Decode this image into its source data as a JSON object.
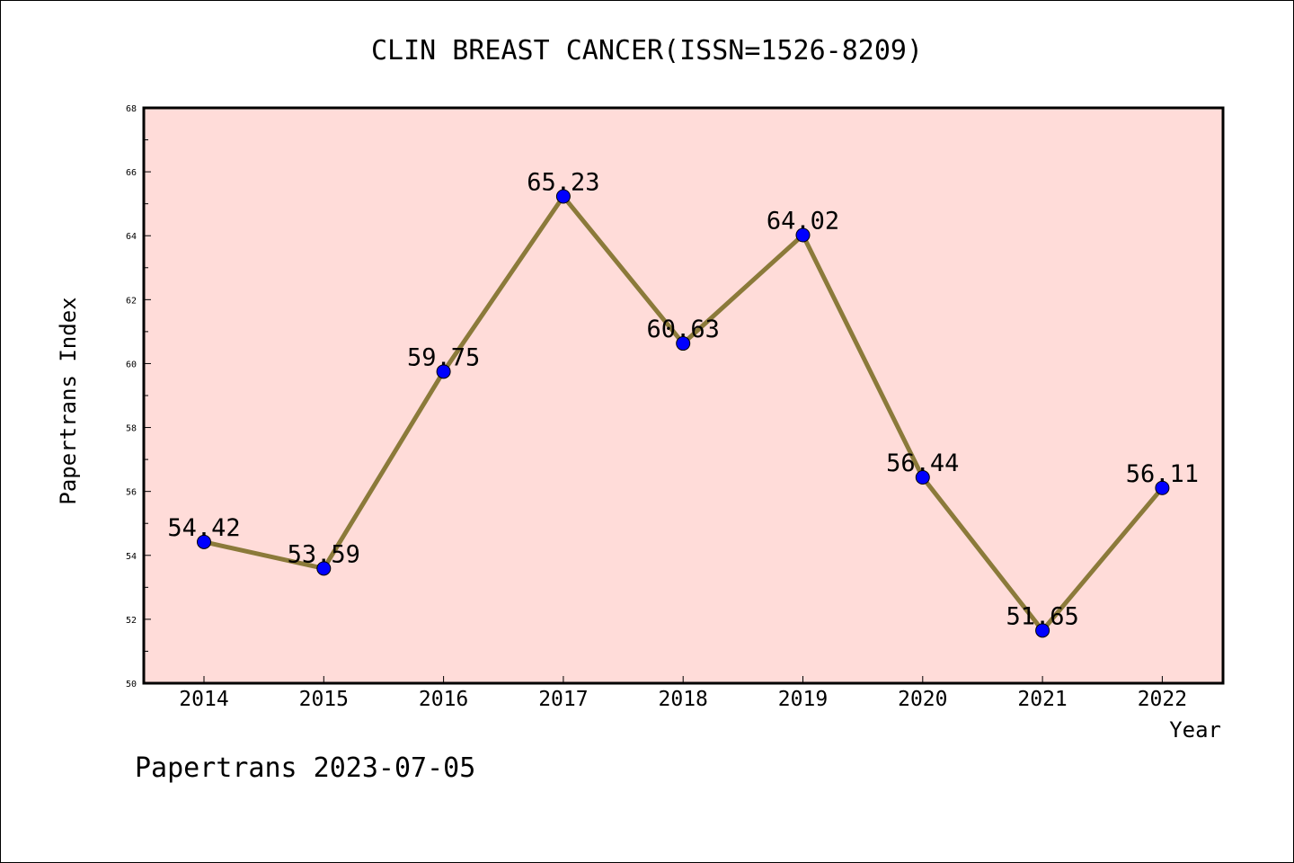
{
  "chart_data": {
    "type": "line",
    "title": "CLIN BREAST CANCER(ISSN=1526-8209)",
    "xlabel": "Year",
    "ylabel": "Papertrans Index",
    "x": [
      "2014",
      "2015",
      "2016",
      "2017",
      "2018",
      "2019",
      "2020",
      "2021",
      "2022"
    ],
    "series": [
      {
        "values": [
          54.42,
          53.59,
          59.75,
          65.23,
          60.63,
          64.02,
          56.44,
          51.65,
          56.11
        ]
      }
    ],
    "data_labels": [
      "54.42",
      "53.59",
      "59.75",
      "65.23",
      "60.63",
      "64.02",
      "56.44",
      "51.65",
      "56.11"
    ],
    "ylim": [
      50,
      68
    ],
    "yticks": [
      "50",
      "52",
      "54",
      "56",
      "58",
      "60",
      "62",
      "64",
      "66",
      "68"
    ],
    "grid": false,
    "colors": {
      "plot_background": "#ffdcd9",
      "line": "#8b7a3a",
      "marker": "#0000ff"
    }
  },
  "footer": {
    "text": "Papertrans 2023-07-05"
  }
}
